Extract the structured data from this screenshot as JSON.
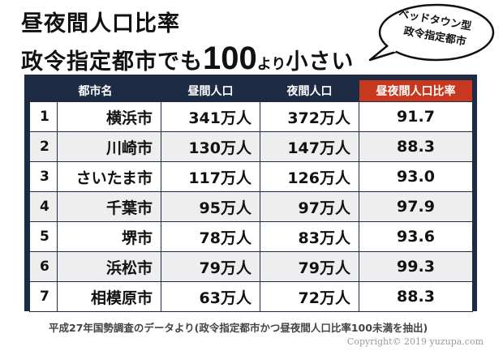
{
  "title": {
    "line1": "昼夜間人口比率",
    "line2_part1": "政令指定都市でも",
    "line2_big": "100",
    "line2_small": "より",
    "line2_part2": "小さい"
  },
  "bubble": {
    "line1": "ベッドタウン型",
    "line2": "政令指定都市"
  },
  "table": {
    "headers": [
      "都市名",
      "昼間人口",
      "夜間人口",
      "昼夜間人口比率"
    ],
    "rows": [
      {
        "rank": "1",
        "city": "横浜市",
        "day": "341万人",
        "night": "372万人",
        "ratio": "91.7"
      },
      {
        "rank": "2",
        "city": "川崎市",
        "day": "130万人",
        "night": "147万人",
        "ratio": "88.3"
      },
      {
        "rank": "3",
        "city": "さいたま市",
        "day": "117万人",
        "night": "126万人",
        "ratio": "93.0"
      },
      {
        "rank": "4",
        "city": "千葉市",
        "day": "95万人",
        "night": "97万人",
        "ratio": "97.9"
      },
      {
        "rank": "5",
        "city": "堺市",
        "day": "78万人",
        "night": "83万人",
        "ratio": "93.6"
      },
      {
        "rank": "6",
        "city": "浜松市",
        "day": "79万人",
        "night": "79万人",
        "ratio": "99.3"
      },
      {
        "rank": "7",
        "city": "相模原市",
        "day": "63万人",
        "night": "72万人",
        "ratio": "88.3"
      }
    ]
  },
  "footer": {
    "note": "平成27年国勢調査のデータより(政令指定都市かつ昼夜間人口比率100未満を抽出)",
    "copyright": "Copyright© 2019 yuzupa.com"
  },
  "colors": {
    "header_bg": "#1e2b45",
    "highlight_header": "#c8381e",
    "alt_row": "#eeeeee"
  }
}
